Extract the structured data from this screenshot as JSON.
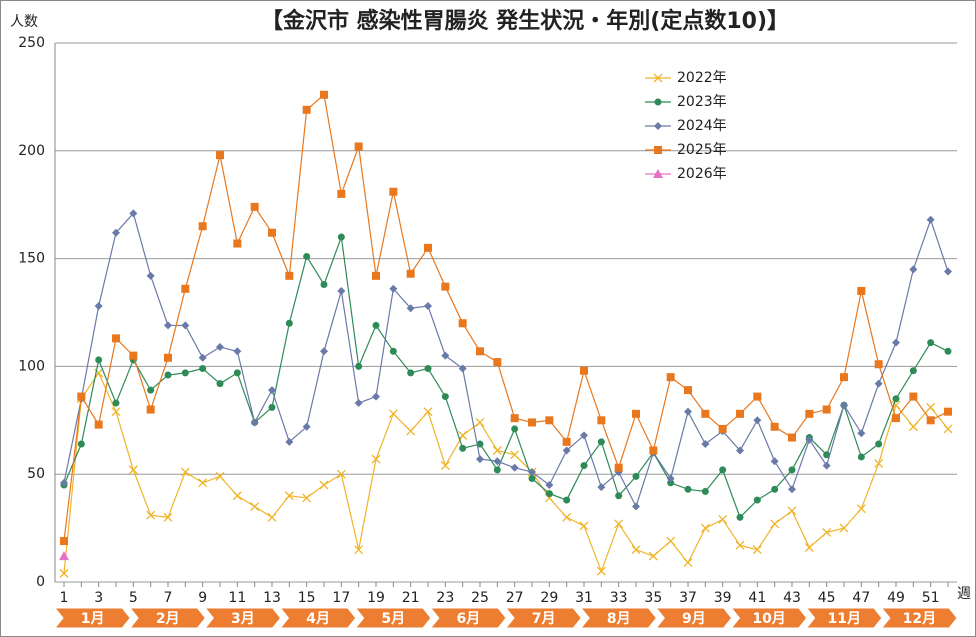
{
  "chart_data": {
    "type": "line",
    "title": "【金沢市  感染性胃腸炎  発生状況・年別(定点数10)】",
    "y_label": "人数",
    "x_label": "週",
    "categories": [
      1,
      null,
      3,
      null,
      5,
      null,
      7,
      null,
      9,
      null,
      11,
      null,
      13,
      null,
      15,
      null,
      17,
      null,
      19,
      null,
      21,
      null,
      23,
      null,
      25,
      null,
      27,
      null,
      29,
      null,
      31,
      null,
      33,
      null,
      35,
      null,
      37,
      null,
      39,
      null,
      41,
      null,
      43,
      null,
      45,
      null,
      47,
      null,
      49,
      null,
      51,
      null
    ],
    "months": [
      "1月",
      "2月",
      "3月",
      "4月",
      "5月",
      "6月",
      "7月",
      "8月",
      "9月",
      "10月",
      "11月",
      "12月"
    ],
    "ylim": [
      0,
      250
    ],
    "yticks": [
      0,
      50,
      100,
      150,
      200,
      250
    ],
    "grid": true,
    "series": [
      {
        "name": "2022年",
        "color": "#f0b429",
        "marker": "x",
        "values": [
          4,
          85,
          97,
          79,
          52,
          31,
          30,
          51,
          46,
          49,
          40,
          35,
          30,
          40,
          39,
          45,
          50,
          15,
          57,
          78,
          70,
          79,
          54,
          68,
          74,
          61,
          59,
          51,
          39,
          30,
          26,
          5,
          27,
          15,
          12,
          19,
          9,
          25,
          29,
          17,
          15,
          27,
          33,
          16,
          23,
          25,
          34,
          55,
          82,
          72,
          81,
          71
        ]
      },
      {
        "name": "2023年",
        "color": "#2e8b57",
        "marker": "circle",
        "values": [
          45,
          64,
          103,
          83,
          103,
          89,
          96,
          97,
          99,
          92,
          97,
          74,
          81,
          120,
          151,
          138,
          160,
          100,
          119,
          107,
          97,
          99,
          86,
          62,
          64,
          52,
          71,
          48,
          41,
          38,
          54,
          65,
          40,
          49,
          60,
          46,
          43,
          42,
          52,
          30,
          38,
          43,
          52,
          67,
          59,
          82,
          58,
          64,
          85,
          98,
          111,
          107
        ]
      },
      {
        "name": "2024年",
        "color": "#6a7aa8",
        "marker": "diamond",
        "values": [
          46,
          85,
          128,
          162,
          171,
          142,
          119,
          119,
          104,
          109,
          107,
          74,
          89,
          65,
          72,
          107,
          135,
          83,
          86,
          136,
          127,
          128,
          105,
          99,
          57,
          56,
          53,
          51,
          45,
          61,
          68,
          44,
          51,
          35,
          60,
          48,
          79,
          64,
          70,
          61,
          75,
          56,
          43,
          66,
          54,
          82,
          69,
          92,
          111,
          145,
          168,
          144
        ]
      },
      {
        "name": "2025年",
        "color": "#e8771e",
        "marker": "square",
        "values": [
          19,
          86,
          73,
          113,
          105,
          80,
          104,
          136,
          165,
          198,
          157,
          174,
          162,
          142,
          219,
          226,
          180,
          202,
          142,
          181,
          143,
          155,
          137,
          120,
          107,
          102,
          76,
          74,
          75,
          65,
          98,
          75,
          53,
          78,
          61,
          95,
          89,
          78,
          71,
          78,
          86,
          72,
          67,
          78,
          80,
          95,
          135,
          101,
          76,
          86,
          75,
          79
        ]
      },
      {
        "name": "2026年",
        "color": "#e86fc8",
        "marker": "triangle",
        "values": [
          12,
          null,
          null,
          null,
          null,
          null,
          null,
          null,
          null,
          null,
          null,
          null,
          null,
          null,
          null,
          null,
          null,
          null,
          null,
          null,
          null,
          null,
          null,
          null,
          null,
          null,
          null,
          null,
          null,
          null,
          null,
          null,
          null,
          null,
          null,
          null,
          null,
          null,
          null,
          null,
          null,
          null,
          null,
          null,
          null,
          null,
          null,
          null,
          null,
          null,
          null,
          null
        ]
      }
    ]
  }
}
